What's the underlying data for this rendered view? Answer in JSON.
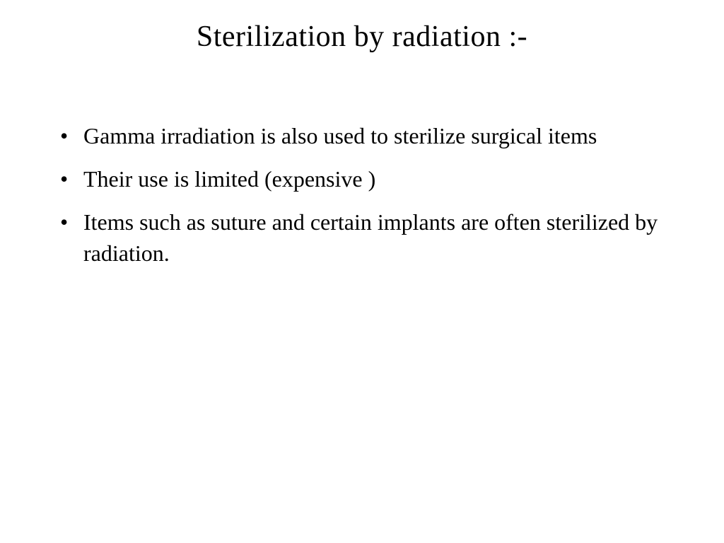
{
  "slide": {
    "title": "Sterilization by radiation :-",
    "title_fontsize": 42,
    "title_color": "#000000",
    "body_fontsize": 32,
    "body_color": "#000000",
    "background_color": "#ffffff",
    "bullets": [
      "Gamma irradiation is also used to sterilize surgical items",
      "Their use is limited (expensive )",
      "Items such as suture and certain implants are often sterilized by radiation."
    ]
  }
}
